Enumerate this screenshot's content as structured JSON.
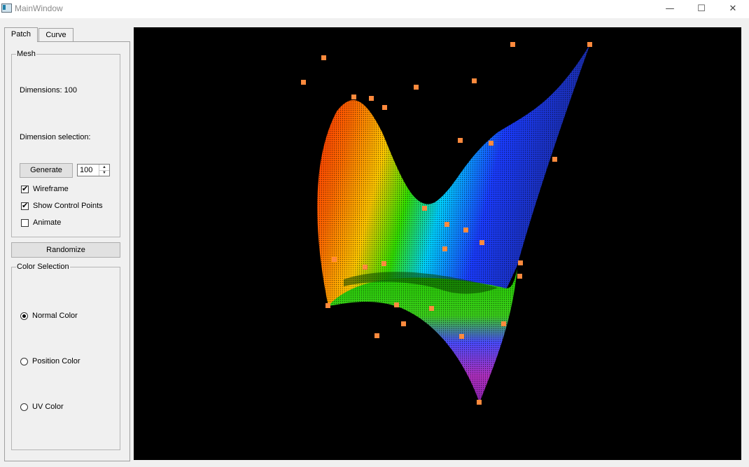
{
  "window": {
    "title": "MainWindow",
    "minimize_glyph": "—",
    "maximize_glyph": "☐",
    "close_glyph": "✕"
  },
  "tabs": [
    {
      "label": "Patch",
      "active": true
    },
    {
      "label": "Curve",
      "active": false
    }
  ],
  "mesh": {
    "title": "Mesh",
    "dimensions_label": "Dimensions: 100",
    "selection_label": "Dimension selection:",
    "generate_label": "Generate",
    "dimension_value": "100",
    "wireframe": {
      "label": "Wireframe",
      "checked": true
    },
    "show_control_points": {
      "label": "Show Control Points",
      "checked": true
    },
    "animate": {
      "label": "Animate",
      "checked": false
    }
  },
  "randomize_label": "Randomize",
  "color_selection": {
    "title": "Color Selection",
    "options": [
      {
        "label": "Normal Color",
        "selected": true
      },
      {
        "label": "Position Color",
        "selected": false
      },
      {
        "label": "UV Color",
        "selected": false
      }
    ]
  },
  "viewport": {
    "background": "#000000",
    "control_point_color": "#ff8a3d",
    "surface_gradient": [
      "#ff2a00",
      "#ff7a00",
      "#ffd400",
      "#00e000",
      "#00c8ff",
      "#1a3cff",
      "#a020c0"
    ]
  }
}
